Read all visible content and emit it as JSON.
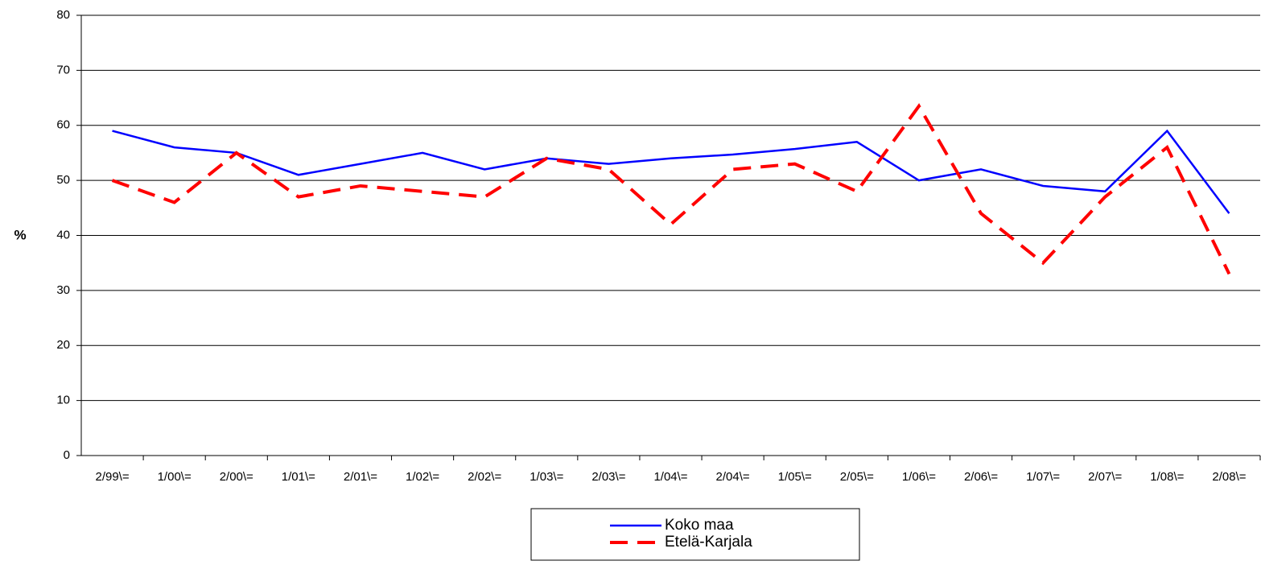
{
  "chart_data": {
    "type": "line",
    "y_label": "%",
    "categories": [
      "2/99\\=",
      "1/00\\=",
      "2/00\\=",
      "1/01\\=",
      "2/01\\=",
      "1/02\\=",
      "2/02\\=",
      "1/03\\=",
      "2/03\\=",
      "1/04\\=",
      "2/04\\=",
      "1/05\\=",
      "2/05\\=",
      "1/06\\=",
      "2/06\\=",
      "1/07\\=",
      "2/07\\=",
      "1/08\\=",
      "2/08\\="
    ],
    "series": [
      {
        "name": "Koko maa",
        "color": "#0000ff",
        "dashed": false,
        "values": [
          59,
          56,
          55,
          51,
          53,
          55,
          52,
          54,
          53,
          54,
          54.7,
          55.7,
          57,
          50,
          52,
          49,
          48,
          59,
          44
        ]
      },
      {
        "name": "Etelä-Karjala",
        "color": "#ff0000",
        "dashed": true,
        "values": [
          50,
          46,
          55,
          47,
          49,
          48,
          47,
          54,
          52,
          42,
          52,
          53,
          48,
          63.5,
          44,
          35,
          47,
          56,
          33
        ]
      }
    ],
    "ylim": [
      0,
      80
    ],
    "yticks": [
      0,
      10,
      20,
      30,
      40,
      50,
      60,
      70,
      80
    ],
    "grid": true
  }
}
